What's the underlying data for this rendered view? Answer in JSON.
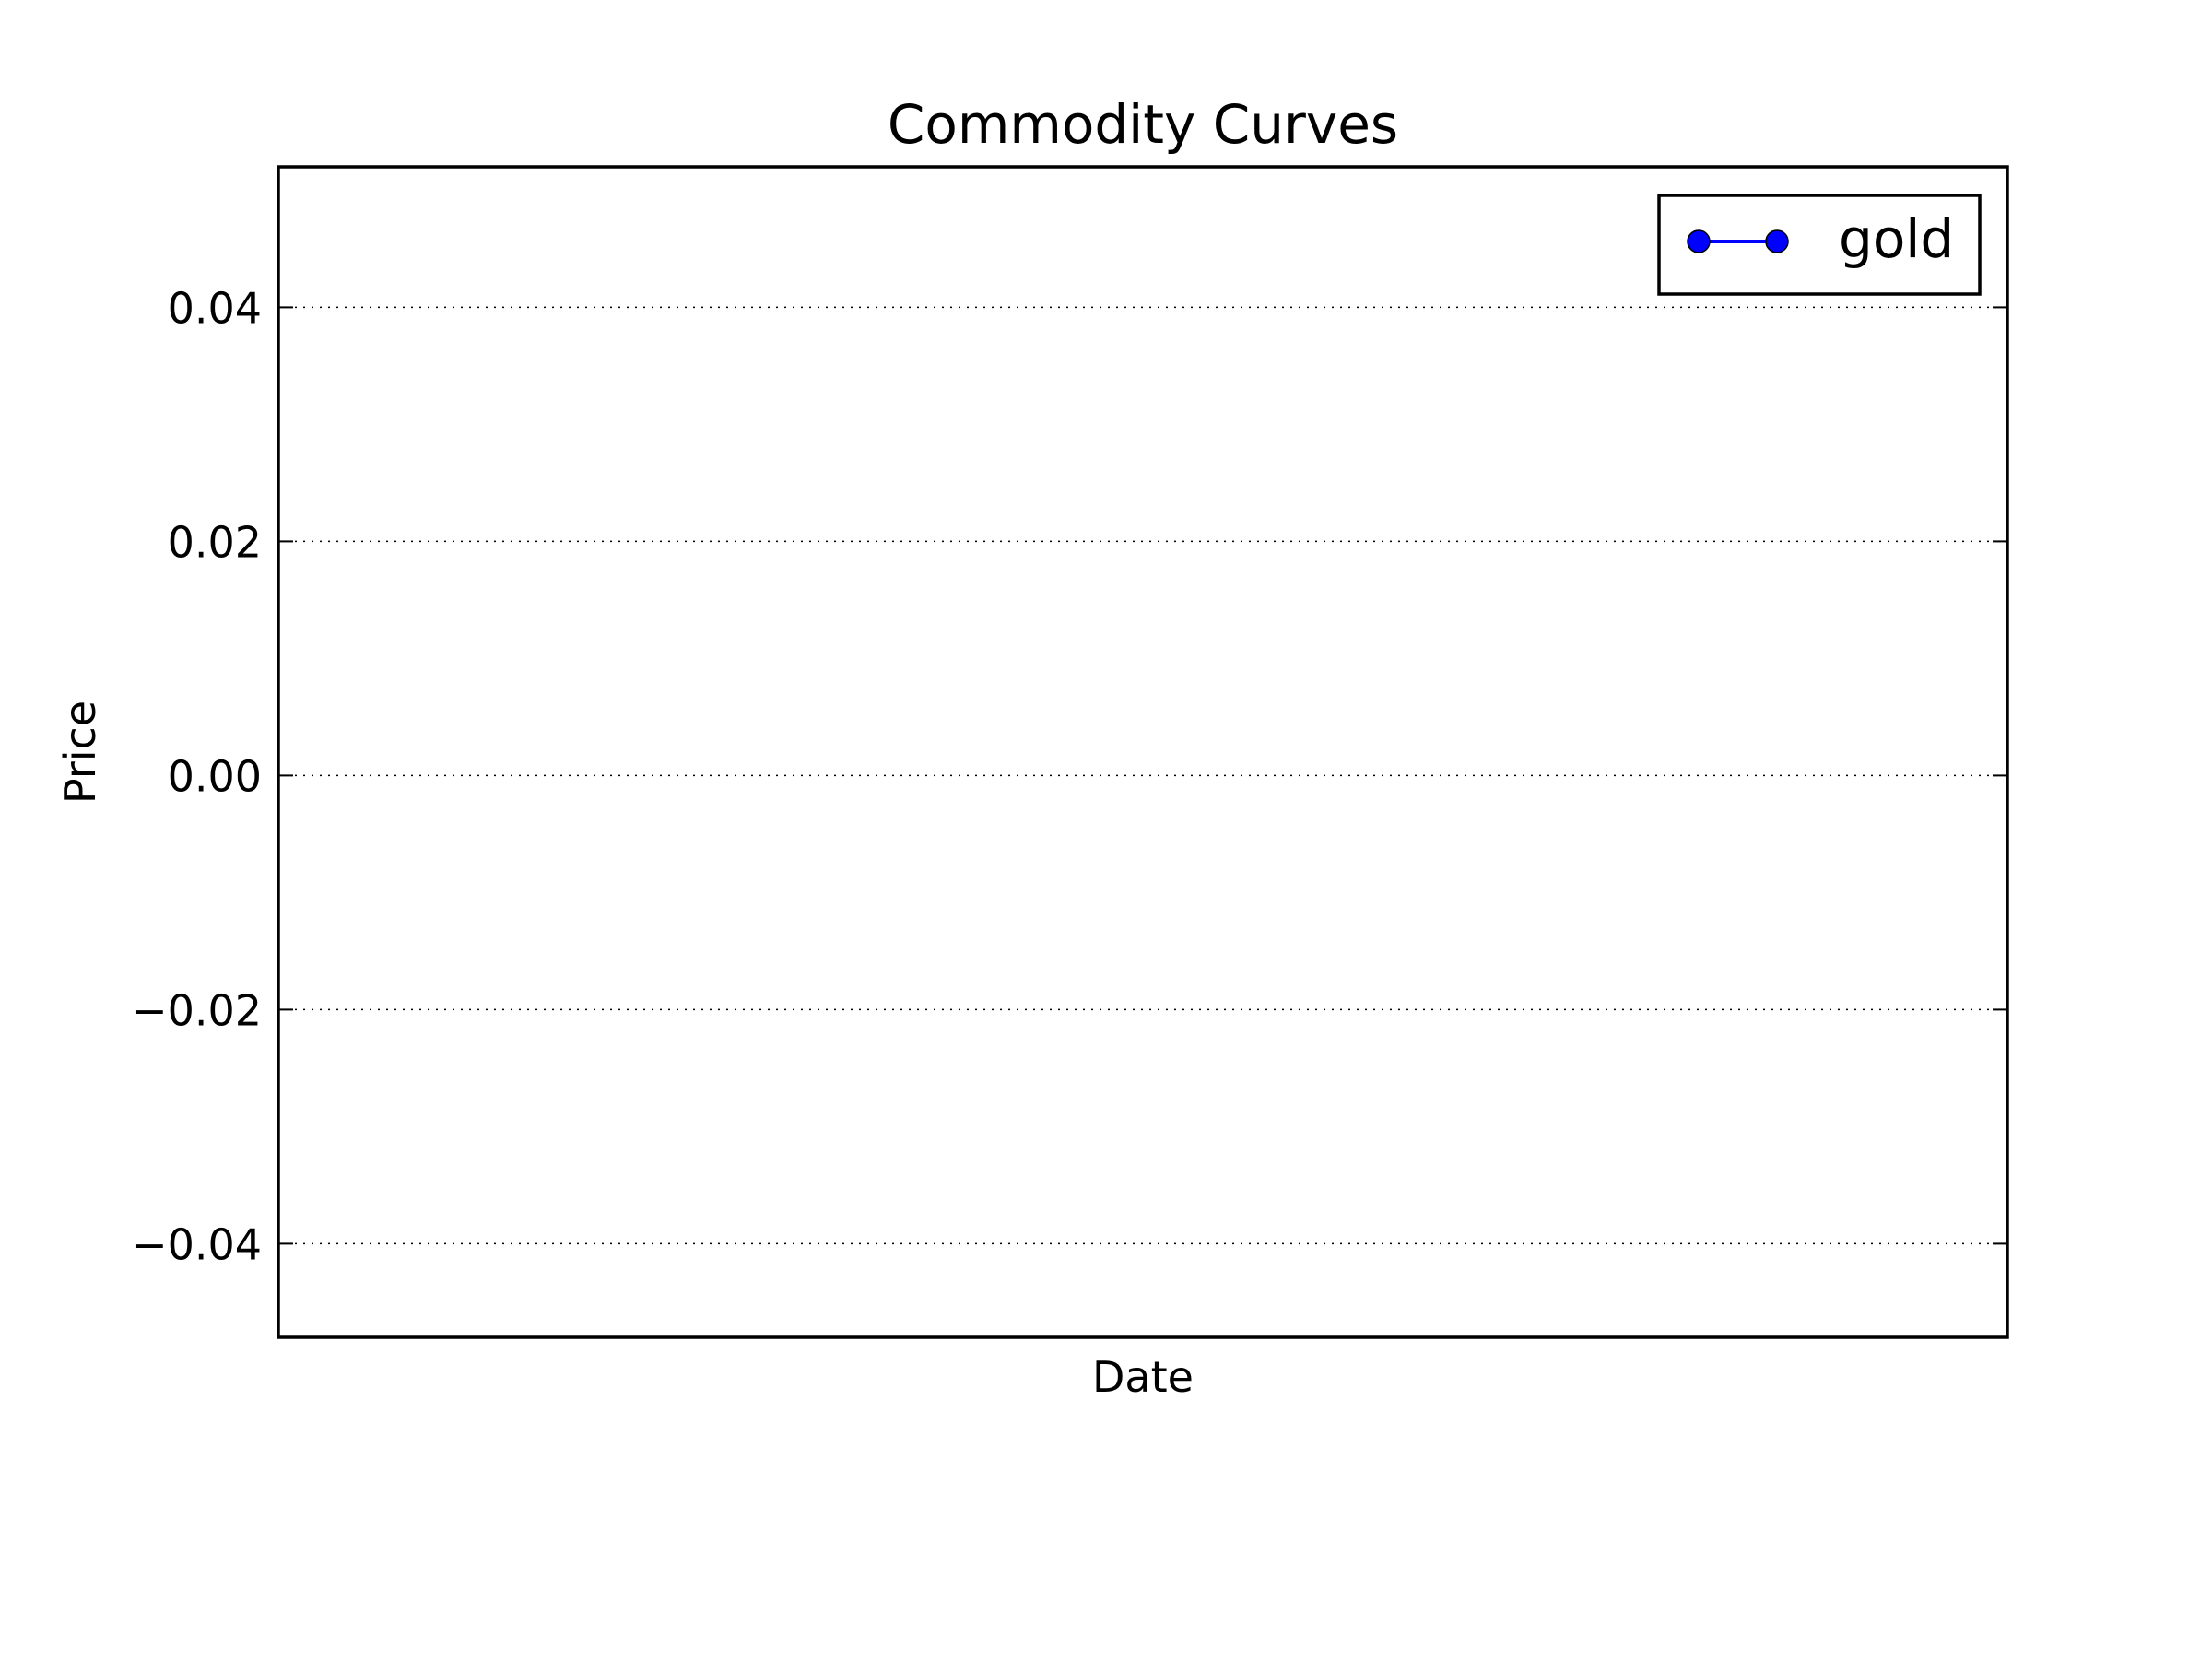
{
  "chart_data": {
    "type": "line",
    "title": "Commodity Curves",
    "xlabel": "Date",
    "ylabel": "Price",
    "ylim": [
      -0.048,
      0.052
    ],
    "yticks": [
      {
        "value": 0.04,
        "label": "0.04"
      },
      {
        "value": 0.02,
        "label": "0.02"
      },
      {
        "value": 0.0,
        "label": "0.00"
      },
      {
        "value": -0.02,
        "label": "−0.02"
      },
      {
        "value": -0.04,
        "label": "−0.04"
      }
    ],
    "grid": "y-dotted",
    "legend_position": "top-right",
    "series": [
      {
        "name": "gold",
        "color": "#0000ff",
        "marker": "circle",
        "x": [],
        "y": []
      }
    ]
  }
}
